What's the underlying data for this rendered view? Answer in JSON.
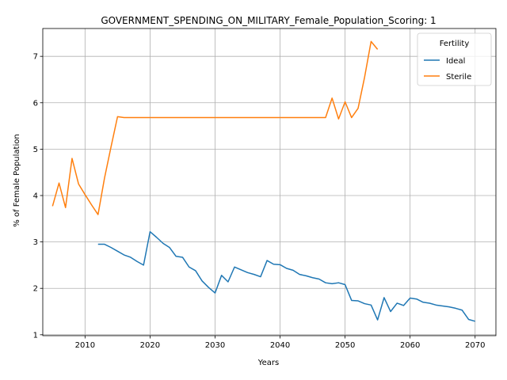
{
  "chart_data": {
    "type": "line",
    "title": "GOVERNMENT_SPENDING_ON_MILITARY_Female_Population_Scoring: 1",
    "xlabel": "Years",
    "ylabel": "% of Female Population",
    "xlim": [
      2003.5,
      2073.2
    ],
    "ylim": [
      0.98,
      7.6
    ],
    "xticks": [
      2010,
      2020,
      2030,
      2040,
      2050,
      2060,
      2070
    ],
    "yticks": [
      1,
      2,
      3,
      4,
      5,
      6,
      7
    ],
    "grid": true,
    "legend": {
      "title": "Fertility",
      "placement": "top-right"
    },
    "series": [
      {
        "name": "Ideal",
        "color": "#1f77b4",
        "x": [
          2012,
          2013,
          2014,
          2015,
          2016,
          2017,
          2018,
          2019,
          2020,
          2021,
          2022,
          2023,
          2024,
          2025,
          2026,
          2027,
          2028,
          2029,
          2030,
          2031,
          2032,
          2033,
          2034,
          2035,
          2036,
          2037,
          2038,
          2039,
          2040,
          2041,
          2042,
          2043,
          2044,
          2045,
          2046,
          2047,
          2048,
          2049,
          2050,
          2051,
          2052,
          2053,
          2054,
          2055,
          2056,
          2057,
          2058,
          2059,
          2060,
          2061,
          2062,
          2063,
          2064,
          2065,
          2066,
          2067,
          2068,
          2069,
          2070
        ],
        "y": [
          2.95,
          2.95,
          2.88,
          2.8,
          2.72,
          2.67,
          2.58,
          2.5,
          3.22,
          3.1,
          2.97,
          2.88,
          2.69,
          2.67,
          2.46,
          2.38,
          2.16,
          2.02,
          1.9,
          2.28,
          2.14,
          2.46,
          2.4,
          2.34,
          2.3,
          2.25,
          2.6,
          2.52,
          2.51,
          2.43,
          2.39,
          2.3,
          2.27,
          2.23,
          2.2,
          2.12,
          2.1,
          2.12,
          2.08,
          1.74,
          1.73,
          1.67,
          1.64,
          1.32,
          1.8,
          1.5,
          1.68,
          1.63,
          1.79,
          1.77,
          1.7,
          1.68,
          1.64,
          1.62,
          1.6,
          1.57,
          1.53,
          1.33,
          1.29
        ]
      },
      {
        "name": "Sterile",
        "color": "#ff7f0e",
        "x": [
          2005,
          2006,
          2007,
          2008,
          2009,
          2010,
          2011,
          2012,
          2013,
          2014,
          2015,
          2016,
          2017,
          2018,
          2019,
          2020,
          2021,
          2022,
          2023,
          2024,
          2025,
          2026,
          2027,
          2028,
          2029,
          2030,
          2031,
          2032,
          2033,
          2034,
          2035,
          2036,
          2037,
          2038,
          2039,
          2040,
          2041,
          2042,
          2043,
          2044,
          2045,
          2046,
          2047,
          2048,
          2049,
          2050,
          2051,
          2052,
          2053,
          2054,
          2055
        ],
        "y": [
          3.77,
          4.27,
          3.74,
          4.8,
          4.25,
          4.02,
          3.8,
          3.59,
          4.38,
          5.05,
          5.7,
          5.68,
          5.68,
          5.68,
          5.68,
          5.68,
          5.68,
          5.68,
          5.68,
          5.68,
          5.68,
          5.68,
          5.68,
          5.68,
          5.68,
          5.68,
          5.68,
          5.68,
          5.68,
          5.68,
          5.68,
          5.68,
          5.68,
          5.68,
          5.68,
          5.68,
          5.68,
          5.68,
          5.68,
          5.68,
          5.68,
          5.68,
          5.68,
          6.1,
          5.65,
          6.02,
          5.68,
          5.88,
          6.55,
          7.32,
          7.15
        ]
      }
    ]
  }
}
